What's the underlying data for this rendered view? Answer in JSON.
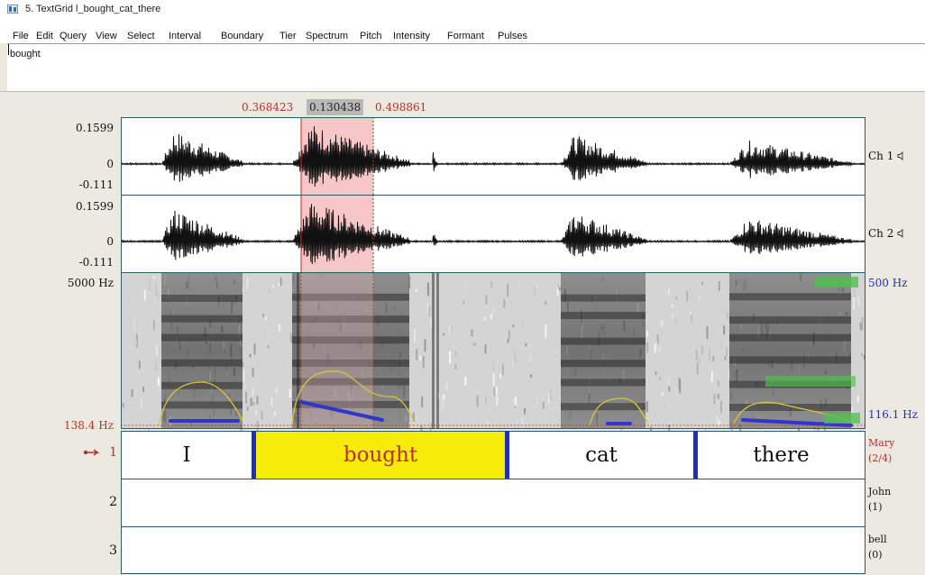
{
  "window": {
    "title": "5. TextGrid l_bought_cat_there"
  },
  "menu": [
    "File",
    "Edit",
    "Query",
    "View",
    "Select",
    "Interval",
    "Boundary",
    "Tier",
    "Spectrum",
    "Pitch",
    "Intensity",
    "Formant",
    "Pulses"
  ],
  "text_field": {
    "value": "bought"
  },
  "selection": {
    "start": "0.368423",
    "duration": "0.130438",
    "end": "0.498861"
  },
  "waveform": {
    "ch1": {
      "top": "0.1599",
      "zero": "0",
      "bottom": "-0.111",
      "label": "Ch 1"
    },
    "ch2": {
      "top": "0.1599",
      "zero": "0",
      "bottom": "-0.111",
      "label": "Ch 2"
    }
  },
  "spectrogram": {
    "max_freq_label": "5000 Hz",
    "pitch_floor_label": "138.4 Hz",
    "right_top_label": "500 Hz",
    "right_bottom_label": "116.1 Hz"
  },
  "tiers": [
    {
      "number": "1",
      "name": "Mary",
      "count": "(2/4)",
      "active": true,
      "intervals": [
        "I",
        "bought",
        "cat",
        "there"
      ],
      "selected_interval": 1
    },
    {
      "number": "2",
      "name": "John",
      "count": "(1)",
      "active": false,
      "intervals": []
    },
    {
      "number": "3",
      "name": "bell",
      "count": "(0)",
      "active": false,
      "intervals": []
    }
  ],
  "colors": {
    "selected_interval": "#f7ec0a",
    "selection_highlight": "#f7c6c6",
    "boundary": "#1f2fb8",
    "pitch": "#3036c9",
    "intensity": "#d8c53a",
    "accent_red": "#b8312b"
  },
  "icons": {
    "app": "praat-textgrid-icon",
    "speaker": "speaker-icon",
    "pointer": "pointing-hand-icon"
  }
}
